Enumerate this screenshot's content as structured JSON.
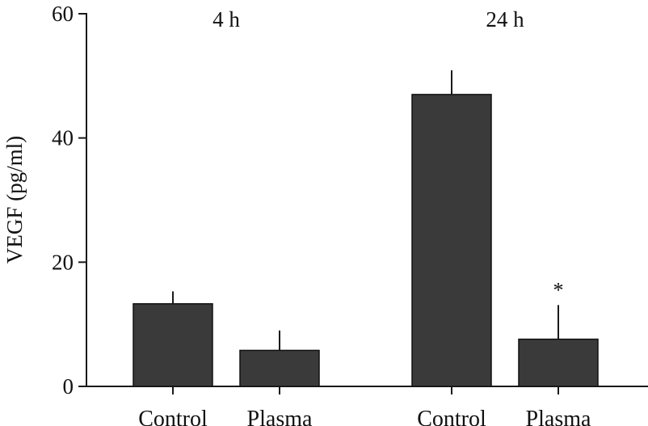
{
  "chart_data": {
    "type": "bar",
    "ylabel": "VEGF (pg/ml)",
    "ylim": [
      0,
      60
    ],
    "yticks": [
      "0",
      "20",
      "40",
      "60"
    ],
    "ytick_values": [
      0,
      20,
      40,
      60
    ],
    "grid": false,
    "groups": [
      {
        "label": "4 h",
        "bars": [
          {
            "category": "Control",
            "value": 13.3,
            "error": 2.0,
            "annotation": ""
          },
          {
            "category": "Plasma",
            "value": 5.8,
            "error": 3.2,
            "annotation": ""
          }
        ]
      },
      {
        "label": "24 h",
        "bars": [
          {
            "category": "Control",
            "value": 47.0,
            "error": 3.9,
            "annotation": ""
          },
          {
            "category": "Plasma",
            "value": 7.6,
            "error": 5.5,
            "annotation": "*"
          }
        ]
      }
    ],
    "colors": {
      "bar": "#3a3a3a"
    }
  }
}
